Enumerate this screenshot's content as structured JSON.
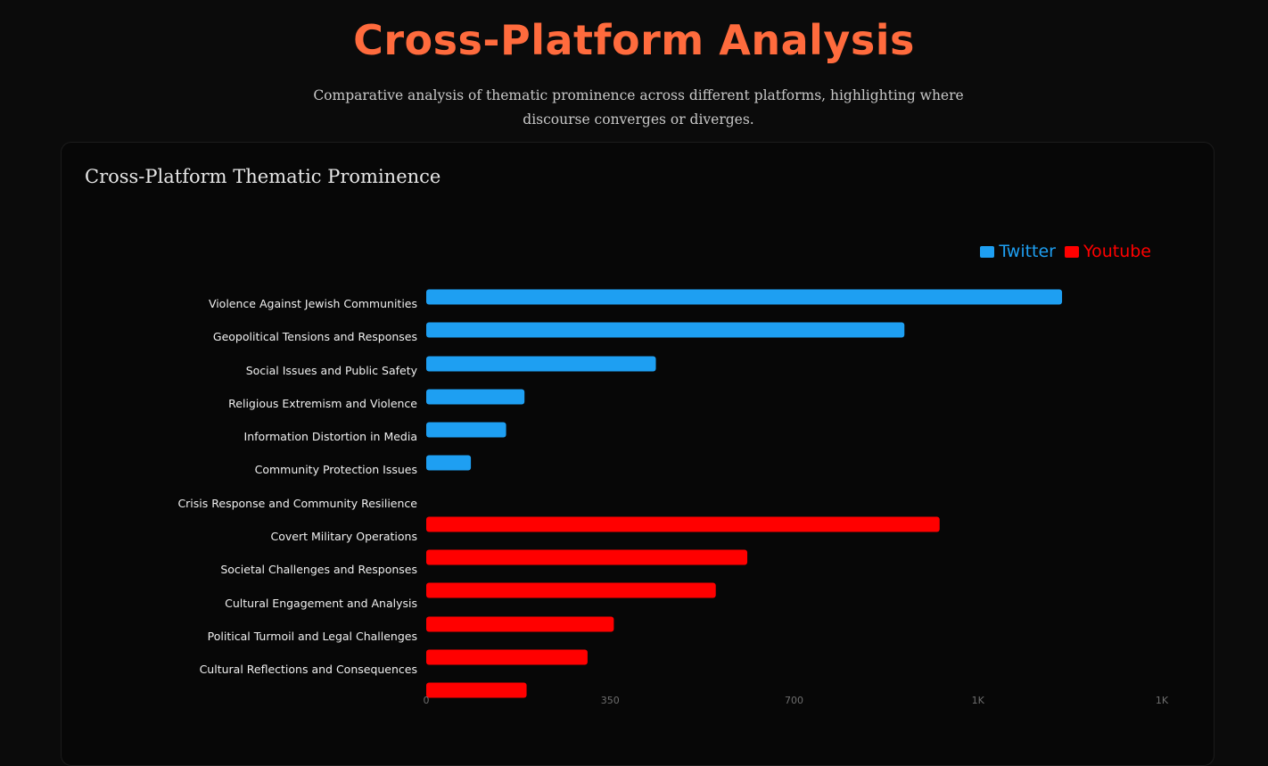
{
  "page": {
    "title": "Cross-Platform Analysis",
    "subtitle": "Comparative analysis of thematic prominence across different platforms, highlighting where discourse converges or diverges."
  },
  "card": {
    "title": "Cross-Platform Thematic Prominence"
  },
  "chart_data": {
    "type": "bar",
    "orientation": "horizontal",
    "title": "Cross-Platform Thematic Prominence",
    "xlabel": "",
    "ylabel": "",
    "xlim": [
      0,
      1400
    ],
    "x_ticks": [
      0,
      350,
      700,
      1050,
      1400
    ],
    "x_tick_labels": [
      "0",
      "350",
      "700",
      "1K",
      "1K"
    ],
    "grid": false,
    "legend_position": "top-right",
    "categories": [
      "Violence Against Jewish Communities",
      "Geopolitical Tensions and Responses",
      "Social Issues and Public Safety",
      "Religious Extremism and Violence",
      "Information Distortion in Media",
      "Community Protection Issues",
      "Crisis Response and Community Resilience",
      "Covert Military Operations",
      "Societal Challenges and Responses",
      "Cultural Engagement and Analysis",
      "Political Turmoil and Legal Challenges",
      "Cultural Reflections and Consequences"
    ],
    "series": [
      {
        "name": "Twitter",
        "color": "#1e9ff2",
        "values": [
          1210,
          910,
          437,
          187,
          152,
          85,
          null,
          null,
          null,
          null,
          null,
          null
        ]
      },
      {
        "name": "Youtube",
        "color": "#ff0000",
        "values": [
          null,
          null,
          null,
          null,
          null,
          null,
          977,
          611,
          551,
          357,
          307,
          191
        ]
      }
    ]
  }
}
